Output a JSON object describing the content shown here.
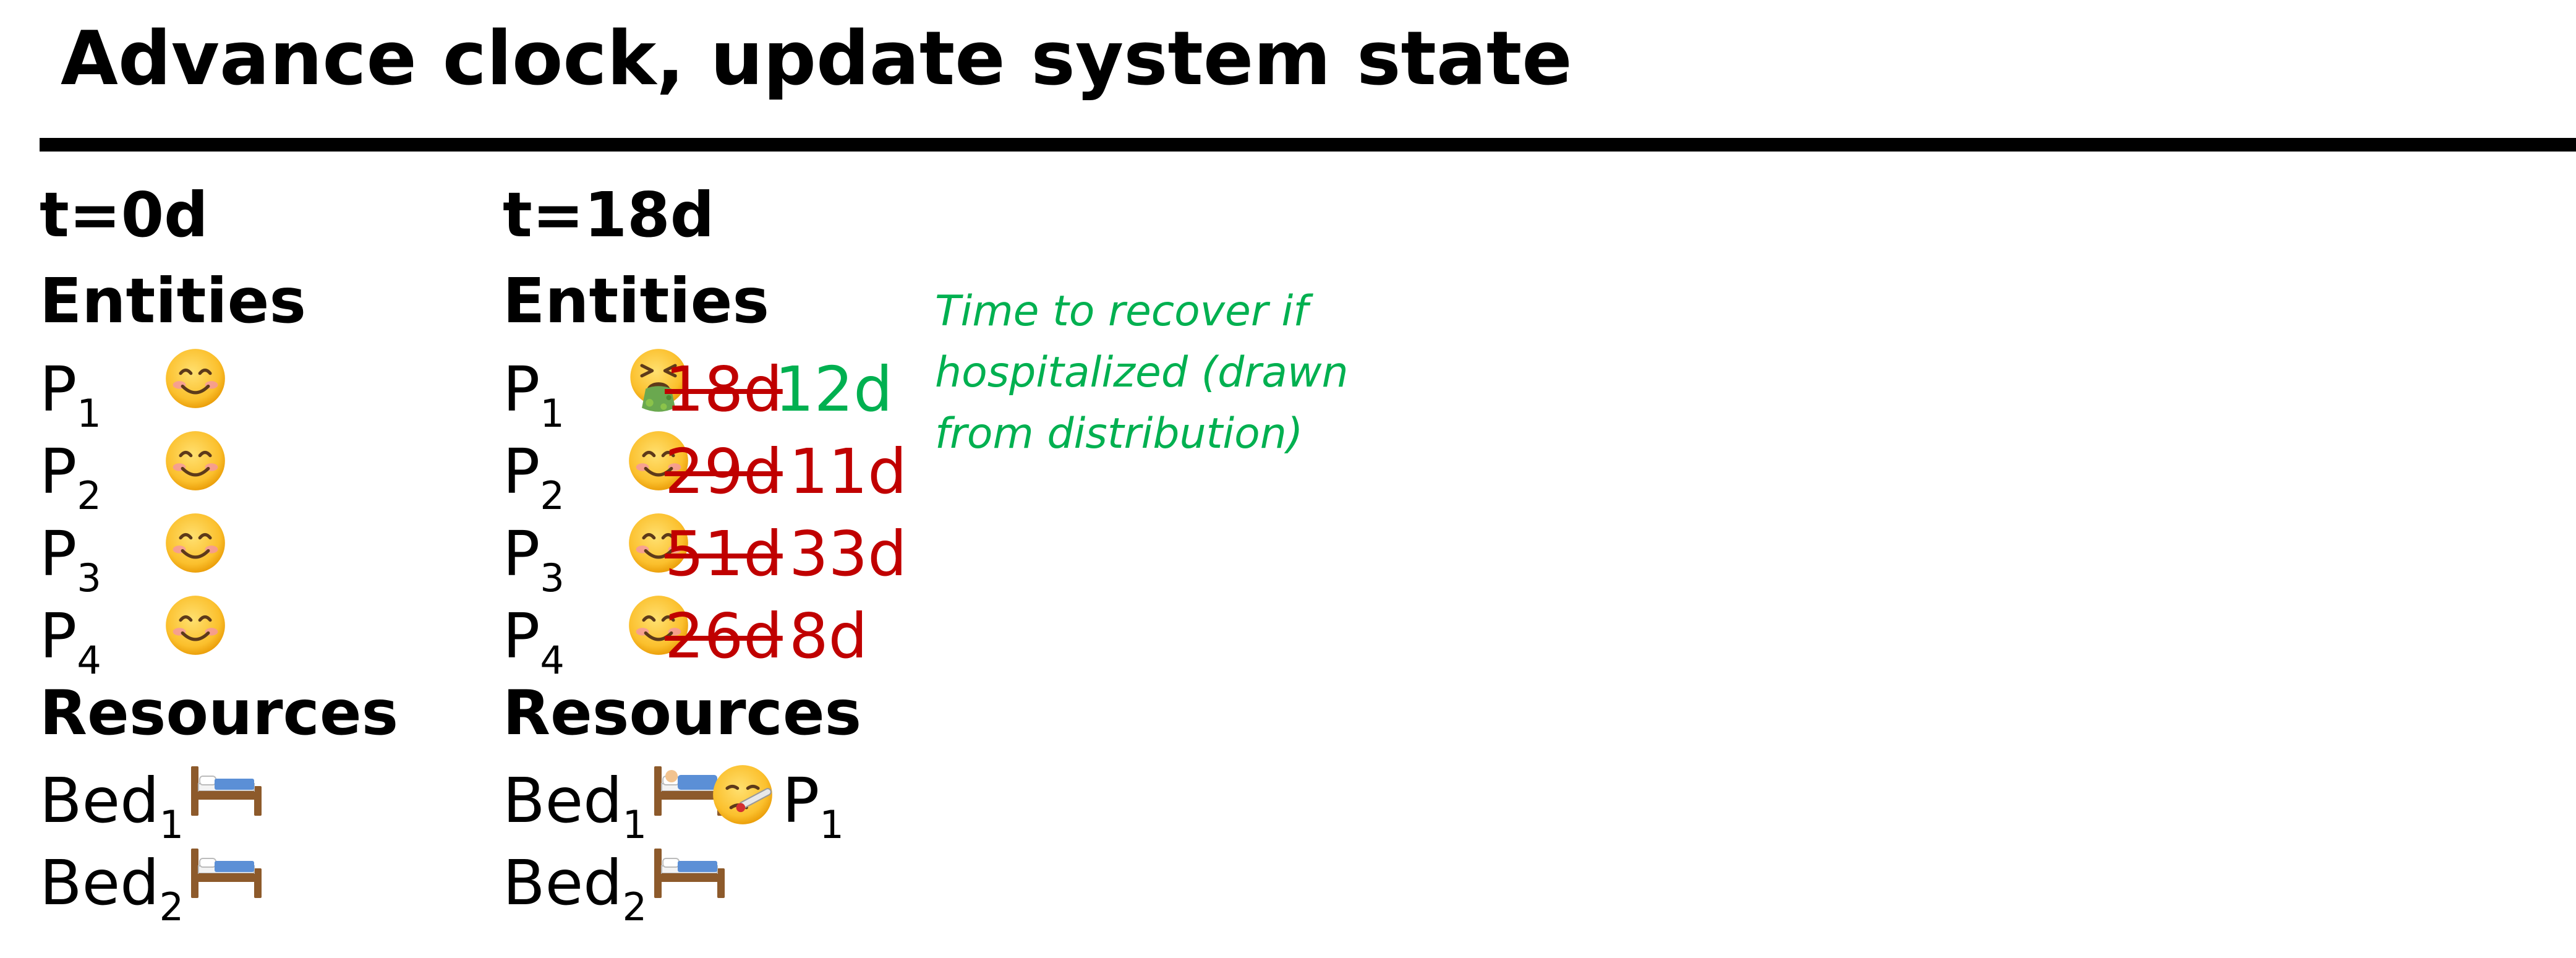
{
  "title": "Advance clock, update system state",
  "colors": {
    "strike": "#c00000",
    "green": "#00b050",
    "text": "#000000"
  },
  "left": {
    "time": "t=0d",
    "entities_label": "Entities",
    "entities": [
      {
        "name": "P",
        "sub": "1",
        "icon": "smiling-face-icon"
      },
      {
        "name": "P",
        "sub": "2",
        "icon": "smiling-face-icon"
      },
      {
        "name": "P",
        "sub": "3",
        "icon": "smiling-face-icon"
      },
      {
        "name": "P",
        "sub": "4",
        "icon": "smiling-face-icon"
      }
    ],
    "resources_label": "Resources",
    "resources": [
      {
        "name": "Bed",
        "sub": "1",
        "icon": "bed-icon"
      },
      {
        "name": "Bed",
        "sub": "2",
        "icon": "bed-icon"
      }
    ]
  },
  "right": {
    "time": "t=18d",
    "entities_label": "Entities",
    "entities": [
      {
        "name": "P",
        "sub": "1",
        "icon": "vomiting-face-icon",
        "old": "18d",
        "new": "12d",
        "new_color": "green"
      },
      {
        "name": "P",
        "sub": "2",
        "icon": "smiling-face-icon",
        "old": "29d",
        "new": "11d",
        "new_color": "red"
      },
      {
        "name": "P",
        "sub": "3",
        "icon": "smiling-face-icon",
        "old": "51d",
        "new": "33d",
        "new_color": "red"
      },
      {
        "name": "P",
        "sub": "4",
        "icon": "smiling-face-icon",
        "old": "26d",
        "new": "8d",
        "new_color": "red"
      }
    ],
    "resources_label": "Resources",
    "resources": [
      {
        "name": "Bed",
        "sub": "1",
        "icon": "bed-with-sleeper-icon",
        "occupant_icon": "face-with-thermometer-icon",
        "occupant_name": "P",
        "occupant_sub": "1"
      },
      {
        "name": "Bed",
        "sub": "2",
        "icon": "bed-icon"
      }
    ]
  },
  "note": "Time to recover if hospitalized (drawn from distribution)"
}
